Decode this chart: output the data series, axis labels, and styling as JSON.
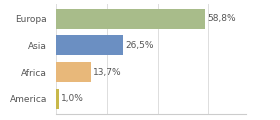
{
  "categories": [
    "America",
    "Africa",
    "Asia",
    "Europa"
  ],
  "values": [
    1.0,
    13.7,
    26.5,
    58.8
  ],
  "labels": [
    "1,0%",
    "13,7%",
    "26,5%",
    "58,8%"
  ],
  "bar_colors": [
    "#c8b84a",
    "#e8b87a",
    "#6b8fc2",
    "#a8bc8a"
  ],
  "background_color": "#ffffff",
  "xlim": [
    0,
    75
  ],
  "bar_height": 0.75,
  "label_fontsize": 6.5,
  "tick_fontsize": 6.5,
  "grid_color": "#dddddd",
  "grid_xticks": [
    0,
    20,
    40,
    60
  ]
}
